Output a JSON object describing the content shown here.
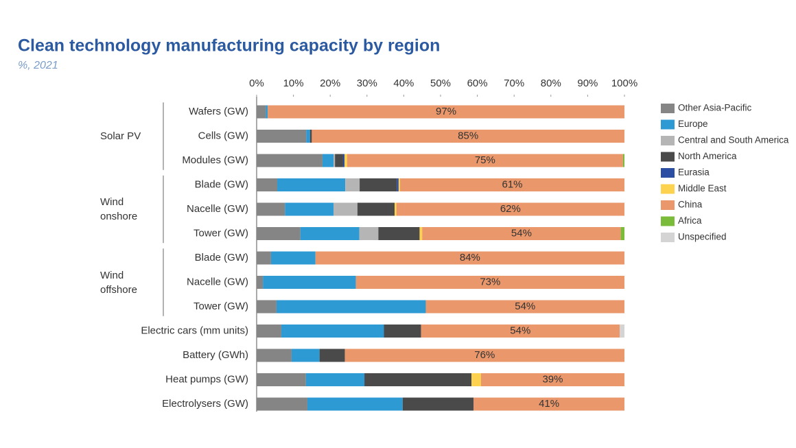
{
  "chart_data": {
    "type": "stacked_barh",
    "title": "Clean technology manufacturing capacity by region",
    "subtitle": "%, 2021",
    "categories": [
      "Wafers (GW)",
      "Cells (GW)",
      "Modules (GW)",
      "Blade (GW)",
      "Nacelle (GW)",
      "Tower (GW)",
      "Blade (GW)",
      "Nacelle (GW)",
      "Tower (GW)",
      "Electric cars (mm units)",
      "Battery (GWh)",
      "Heat pumps (GW)",
      "Electrolysers (GW)"
    ],
    "category_groups": [
      "Solar PV",
      "Solar PV",
      "Solar PV",
      "Wind onshore",
      "Wind onshore",
      "Wind onshore",
      "Wind offshore",
      "Wind offshore",
      "Wind offshore",
      null,
      null,
      null,
      null
    ],
    "xlim": [
      0,
      100
    ],
    "xticks": [
      {
        "value": 0,
        "label": "0%"
      },
      {
        "value": 10,
        "label": "10%"
      },
      {
        "value": 20,
        "label": "20%"
      },
      {
        "value": 30,
        "label": "30%"
      },
      {
        "value": 40,
        "label": "40%"
      },
      {
        "value": 50,
        "label": "50%"
      },
      {
        "value": 60,
        "label": "60%"
      },
      {
        "value": 70,
        "label": "70%"
      },
      {
        "value": 80,
        "label": "80%"
      },
      {
        "value": 90,
        "label": "90%"
      },
      {
        "value": 100,
        "label": "100%"
      }
    ],
    "series": [
      {
        "name": "Other Asia-Pacific",
        "color": "#858585",
        "values": [
          2.5,
          13.5,
          17.9,
          5.6,
          7.7,
          11.9,
          3.9,
          1.7,
          5.4,
          6.7,
          9.5,
          13.4,
          13.8
        ]
      },
      {
        "name": "Europe",
        "color": "#2d9ad4",
        "values": [
          0.5,
          1,
          3,
          18.5,
          13.2,
          16,
          12.1,
          25.3,
          40.6,
          27.9,
          7.6,
          15.9,
          25.9
        ]
      },
      {
        "name": "Central and South America",
        "color": "#b5b5b5",
        "values": [
          0,
          0,
          0.4,
          3.9,
          6.5,
          5.2,
          0,
          0,
          0,
          0,
          0,
          0,
          0
        ]
      },
      {
        "name": "North America",
        "color": "#4a4a4a",
        "values": [
          0,
          0.5,
          2.2,
          10.1,
          10.1,
          11.2,
          0,
          0,
          0,
          10.1,
          6.9,
          29.1,
          19.3
        ]
      },
      {
        "name": "Eurasia",
        "color": "#2b4ea2",
        "values": [
          0,
          0,
          0.4,
          0.5,
          0,
          0,
          0,
          0,
          0,
          0,
          0,
          0,
          0
        ]
      },
      {
        "name": "Middle East",
        "color": "#fcd24f",
        "values": [
          0,
          0,
          0.7,
          0.4,
          0.5,
          0.7,
          0,
          0,
          0,
          0,
          0,
          2.6,
          0
        ]
      },
      {
        "name": "China",
        "color": "#e9976b",
        "values": [
          97,
          85,
          75,
          61,
          62,
          54,
          84,
          73,
          54,
          54,
          76,
          39,
          41
        ],
        "value_labels": [
          "97%",
          "85%",
          "75%",
          "61%",
          "62%",
          "54%",
          "84%",
          "73%",
          "54%",
          "54%",
          "76%",
          "39%",
          "41%"
        ]
      },
      {
        "name": "Africa",
        "color": "#7bbb3a",
        "values": [
          0,
          0,
          0.4,
          0,
          0,
          1,
          0,
          0,
          0,
          0,
          0,
          0,
          0
        ]
      },
      {
        "name": "Unspecified",
        "color": "#d4d4d4",
        "values": [
          0,
          0,
          0,
          0,
          0,
          0,
          0,
          0,
          0,
          1.3,
          0,
          0,
          0
        ]
      }
    ]
  }
}
